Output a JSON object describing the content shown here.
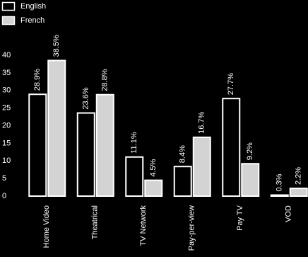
{
  "chart_data": {
    "type": "bar",
    "categories": [
      "Home Video",
      "Theatrical",
      "TV Network",
      "Pay-per-view",
      "Pay TV",
      "VOD"
    ],
    "series": [
      {
        "name": "English",
        "color": "#000000",
        "values": [
          28.9,
          23.6,
          11.1,
          8.4,
          27.7,
          0.3
        ],
        "value_labels": [
          "28.9%",
          "23.6%",
          "11.1%",
          "8.4%",
          "27.7%",
          "0.3%"
        ]
      },
      {
        "name": "French",
        "color": "#d3d3d3",
        "values": [
          38.5,
          28.8,
          4.5,
          16.7,
          9.2,
          2.2
        ],
        "value_labels": [
          "38.5%",
          "28.8%",
          "4.5%",
          "16.7%",
          "9.2%",
          "2.2%"
        ]
      }
    ],
    "ylim": [
      0,
      40
    ],
    "yticks": [
      0,
      5,
      10,
      15,
      20,
      25,
      30,
      35,
      40
    ],
    "grid": false,
    "legend": "top-left"
  }
}
